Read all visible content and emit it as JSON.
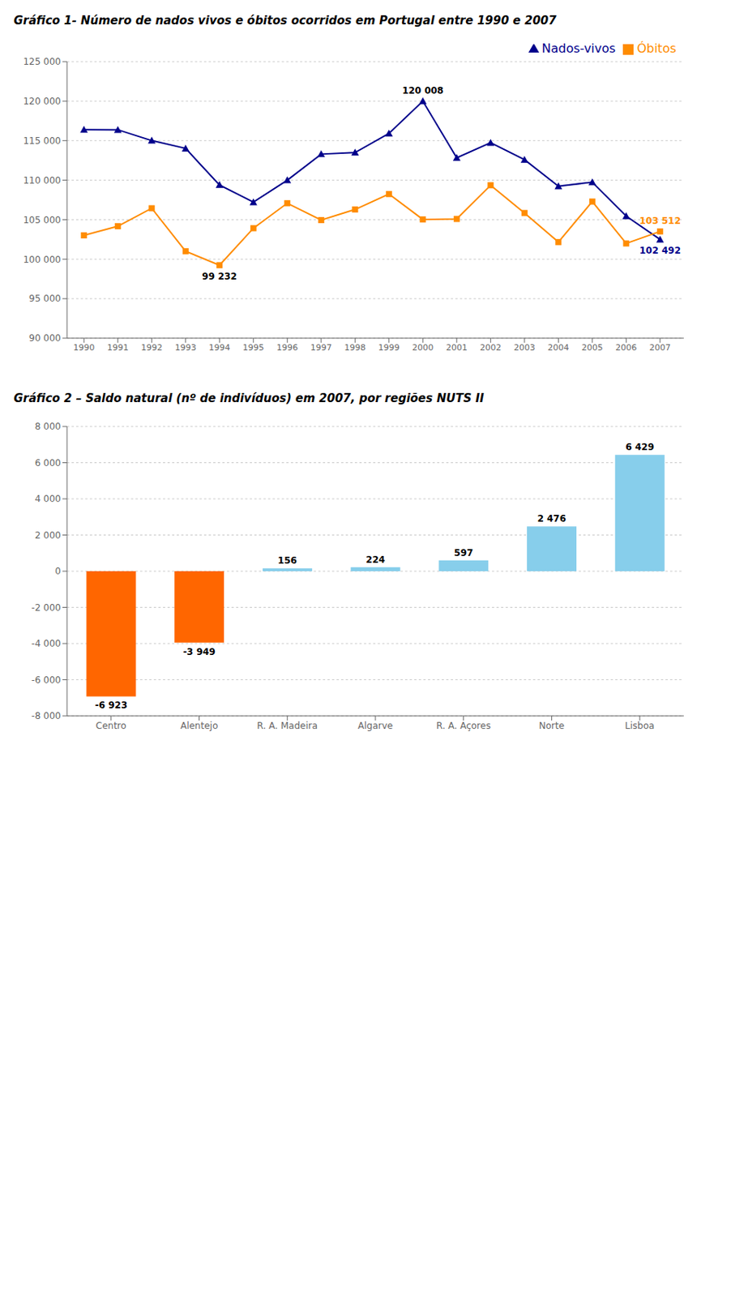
{
  "chart_data": [
    {
      "type": "line",
      "title": "Gráfico 1- Número de nados vivos e óbitos ocorridos em Portugal entre 1990 e 2007",
      "x": [
        1990,
        1991,
        1992,
        1993,
        1994,
        1995,
        1996,
        1997,
        1998,
        1999,
        2000,
        2001,
        2002,
        2003,
        2004,
        2005,
        2006,
        2007
      ],
      "xlim": [
        1989.5,
        2007.7
      ],
      "xticks": [
        1990,
        1991,
        1992,
        1993,
        1994,
        1995,
        1996,
        1997,
        1998,
        1999,
        2000,
        2001,
        2002,
        2003,
        2004,
        2005,
        2006,
        2007
      ],
      "ylim": [
        90000,
        125000
      ],
      "yticks": [
        {
          "value": 90000,
          "label": "90 000"
        },
        {
          "value": 95000,
          "label": "95 000"
        },
        {
          "value": 100000,
          "label": "100 000"
        },
        {
          "value": 105000,
          "label": "105 000"
        },
        {
          "value": 110000,
          "label": "110 000"
        },
        {
          "value": 115000,
          "label": "115 000"
        },
        {
          "value": 120000,
          "label": "120 000"
        },
        {
          "value": 125000,
          "label": "125 000"
        }
      ],
      "grid": true,
      "legend": "upper right",
      "series": [
        {
          "name": "Nados-vivos",
          "color": "#00008B",
          "marker": "triangle",
          "values": [
            116383,
            116378,
            115012,
            114018,
            109397,
            107220,
            109999,
            113298,
            113494,
            115922,
            120008,
            112825,
            114741,
            112590,
            109234,
            109744,
            105449,
            102492
          ]
        },
        {
          "name": "Óbitos",
          "color": "#FF8C00",
          "marker": "square",
          "values": [
            103012,
            104170,
            106444,
            101007,
            99232,
            103920,
            107085,
            104947,
            106288,
            108245,
            105027,
            105092,
            109355,
            105844,
            102164,
            107294,
            101990,
            103512
          ]
        }
      ],
      "annotations": [
        {
          "text": "120 008",
          "x": 2000,
          "y": 120008,
          "color": "#000000"
        },
        {
          "text": "99 232",
          "x": 1994,
          "y": 99232,
          "color": "#000000"
        },
        {
          "text": "103 512",
          "x": 2007,
          "y": 103512,
          "color": "#FF8C00"
        },
        {
          "text": "102 492",
          "x": 2007,
          "y": 102492,
          "color": "#00008B"
        }
      ]
    },
    {
      "type": "bar",
      "title": "Gráfico 2 – Saldo natural (nº de indivíduos) em 2007, por regiões NUTS II",
      "categories": [
        "Centro",
        "Alentejo",
        "R. A. Madeira",
        "Algarve",
        "R. A. Açores",
        "Norte",
        "Lisboa"
      ],
      "values": [
        -6923,
        -3949,
        156,
        224,
        597,
        2476,
        6429
      ],
      "value_labels": [
        "-6 923",
        "-3 949",
        "156",
        "224",
        "597",
        "2 476",
        "6 429"
      ],
      "data_labels": true,
      "colors": [
        "#FF6600",
        "#FF6600",
        "#87CEEB",
        "#87CEEB",
        "#87CEEB",
        "#87CEEB",
        "#87CEEB"
      ],
      "ylim": [
        -8000,
        8000
      ],
      "yticks": [
        {
          "value": -8000,
          "label": "-8 000"
        },
        {
          "value": -6000,
          "label": "-6 000"
        },
        {
          "value": -4000,
          "label": "-4 000"
        },
        {
          "value": -2000,
          "label": "-2 000"
        },
        0,
        {
          "value": 2000,
          "label": "2 000"
        },
        {
          "value": 4000,
          "label": "4 000"
        },
        {
          "value": 6000,
          "label": "6 000"
        },
        {
          "value": 8000,
          "label": "8 000"
        }
      ],
      "grid": true
    }
  ]
}
